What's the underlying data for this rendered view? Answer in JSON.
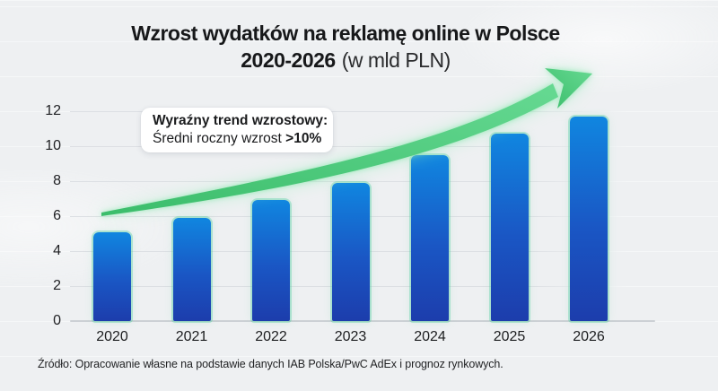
{
  "title": {
    "line1": "Wzrost wydatków na reklamę online w Polsce",
    "line2_bold": "2020-2026",
    "line2_regular": "(w mld PLN)"
  },
  "annotation": {
    "line1": "Wyraźny trend wzrostowy:",
    "line2_prefix": "Średni roczny wzrost",
    "line2_bold": ">10%"
  },
  "source": "Źródło: Opracowanie własne na podstawie danych IAB Polska/PwC AdEx i prognoz rynkowych.",
  "chart_data": {
    "type": "bar",
    "title": "Wzrost wydatków na reklamę online w Polsce 2020-2026 (w mld PLN)",
    "categories": [
      "2020",
      "2021",
      "2022",
      "2023",
      "2024",
      "2025",
      "2026"
    ],
    "values": [
      5.1,
      5.9,
      6.9,
      7.9,
      9.5,
      10.7,
      11.7
    ],
    "xlabel": "",
    "ylabel": "",
    "ylim": [
      0,
      12
    ],
    "yticks": [
      0,
      2,
      4,
      6,
      8,
      10,
      12
    ],
    "grid": true,
    "legend": false,
    "annotation": "Wyraźny trend wzrostowy: Średni roczny wzrost >10%",
    "trend_arrow": "rosnąca zielona strzałka"
  },
  "colors": {
    "background": "#eef0f2",
    "bar_gradient_top": "#1086e0",
    "bar_gradient_bottom": "#1c3dac",
    "bar_rim": "#50cda0",
    "arrow_green_dark": "#3bbd6b",
    "arrow_green_light": "#66d992",
    "arrow_glow": "#9aeebd",
    "gridline": "#dcdfe3",
    "title_text": "#17181a",
    "axis_text": "#202124",
    "annotation_bg": "#ffffff",
    "source_text": "#222325"
  }
}
